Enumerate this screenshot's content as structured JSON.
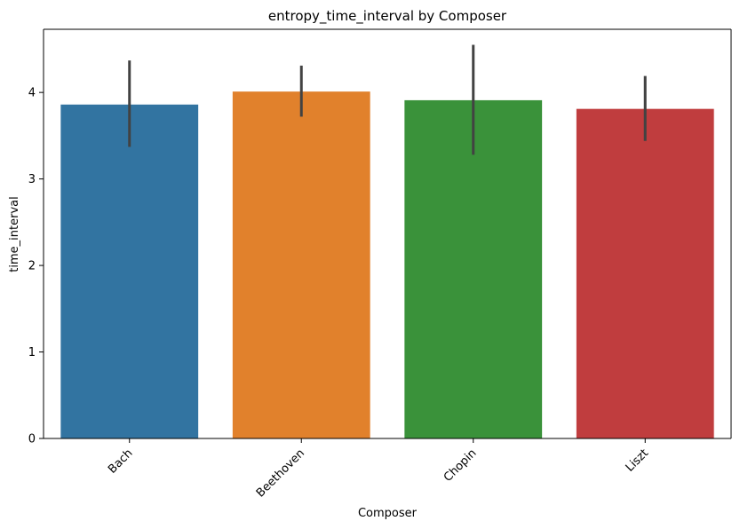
{
  "chart_data": {
    "type": "bar",
    "title": "entropy_time_interval by Composer",
    "xlabel": "Composer",
    "ylabel": "time_interval",
    "categories": [
      "Bach",
      "Beethoven",
      "Chopin",
      "Liszt"
    ],
    "values": [
      3.86,
      4.01,
      3.91,
      3.81
    ],
    "error_low": [
      3.37,
      3.72,
      3.28,
      3.44
    ],
    "error_high": [
      4.37,
      4.31,
      4.55,
      4.19
    ],
    "colors": [
      "#3274a1",
      "#e1812c",
      "#3a923a",
      "#c03d3e"
    ],
    "yticks": [
      0,
      1,
      2,
      3,
      4
    ],
    "ylim": [
      0,
      4.73
    ],
    "grid": false,
    "legend": "none"
  }
}
